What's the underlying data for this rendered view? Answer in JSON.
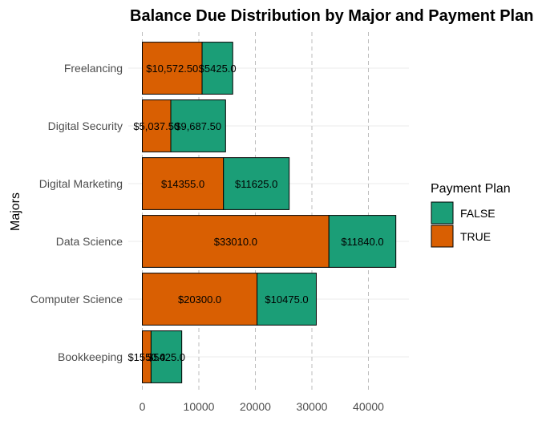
{
  "chart_data": {
    "type": "bar",
    "orientation": "horizontal",
    "stacked": true,
    "title": "Balance Due Distribution by Major and Payment Plan",
    "ylabel": "Majors",
    "xlabel": "",
    "categories": [
      "Bookkeeping",
      "Computer Science",
      "Data Science",
      "Digital Marketing",
      "Digital Security",
      "Freelancing"
    ],
    "series": [
      {
        "name": "TRUE",
        "color": "#d95f02",
        "values": [
          1550,
          20300,
          33010,
          14355,
          5037.5,
          10572.5
        ],
        "labels": [
          "$1550.0",
          "$20300.0",
          "$33010.0",
          "$14355.0",
          "$5,037.50",
          "$10,572.50"
        ]
      },
      {
        "name": "FALSE",
        "color": "#1b9e77",
        "values": [
          5425,
          10475,
          11840,
          11625,
          9687.5,
          5425
        ],
        "labels": [
          "$5425.0",
          "$10475.0",
          "$11840.0",
          "$11625.0",
          "$9,687.50",
          "$5425.0"
        ]
      }
    ],
    "xticks": [
      0,
      10000,
      20000,
      30000,
      40000
    ],
    "xtick_labels": [
      "0",
      "10000",
      "20000",
      "30000",
      "40000"
    ],
    "xlim": [
      0,
      47000
    ],
    "grid": true,
    "legend": {
      "title": "Payment Plan",
      "position": "right",
      "items": [
        {
          "label": "FALSE",
          "color": "#1b9e77"
        },
        {
          "label": "TRUE",
          "color": "#d95f02"
        }
      ]
    }
  }
}
